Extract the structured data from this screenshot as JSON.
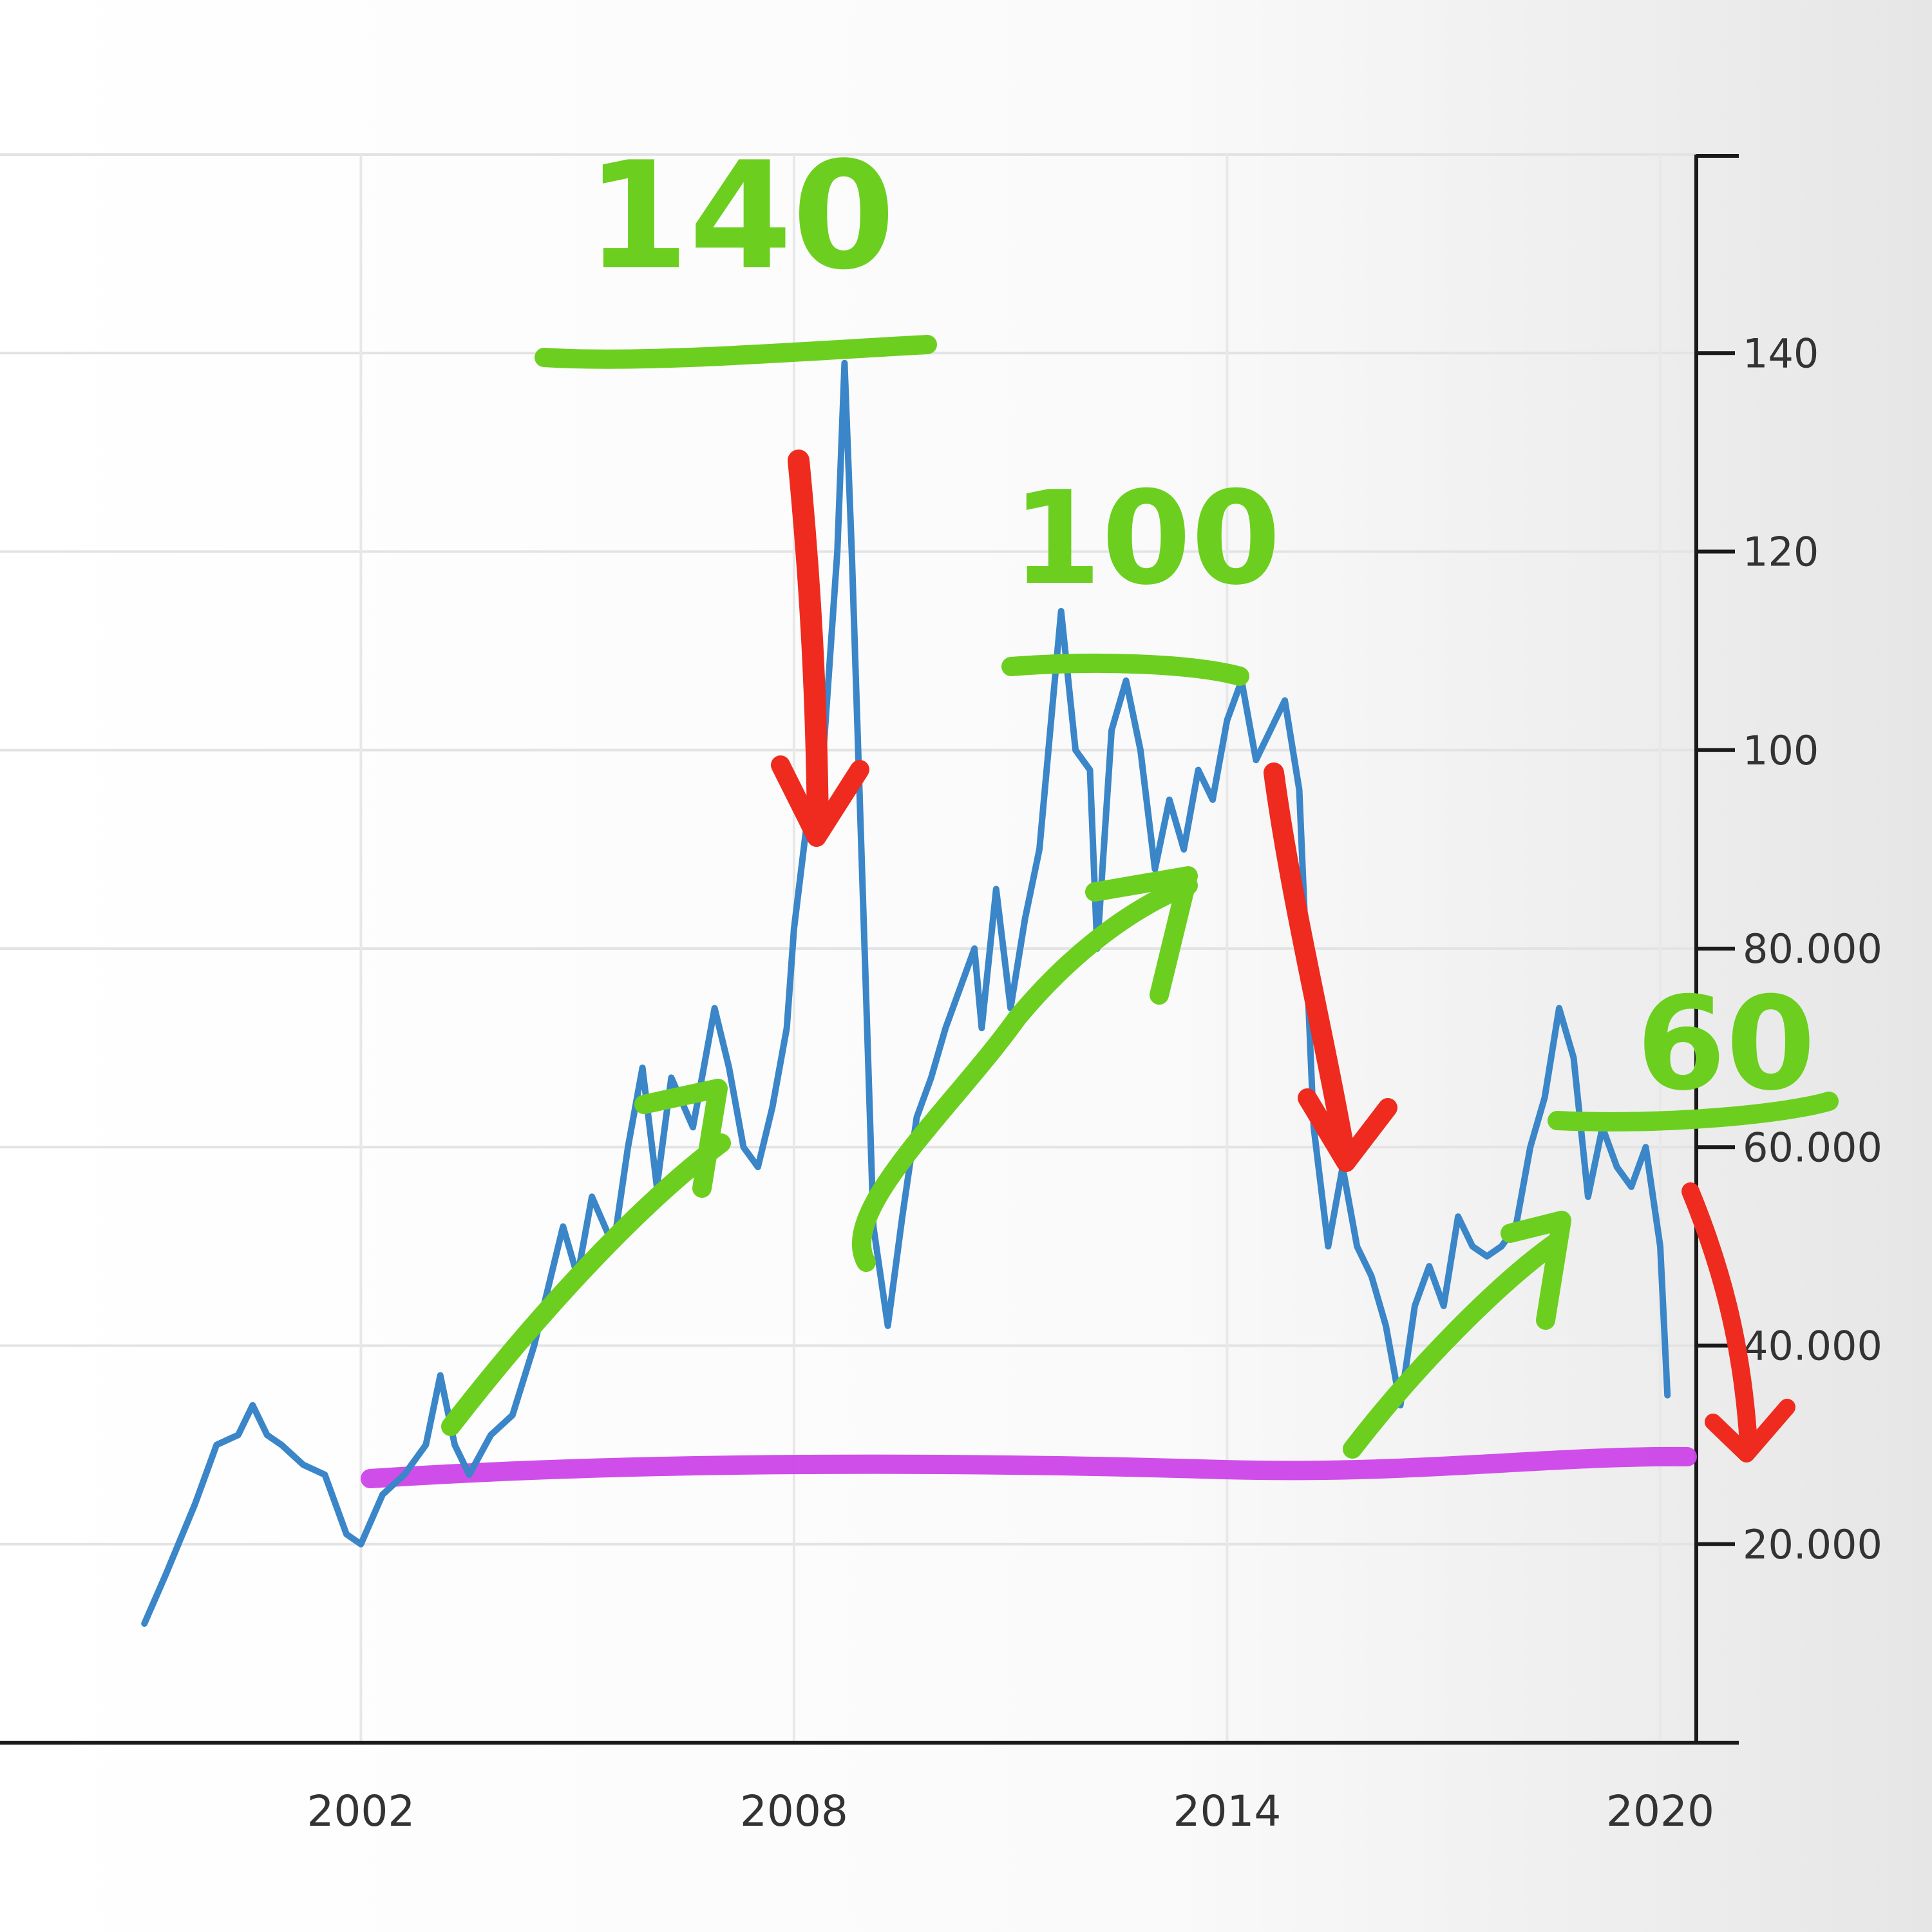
{
  "chart_data": {
    "type": "line",
    "title": "",
    "xlabel": "",
    "ylabel": "",
    "xlim": [
      1997.0,
      2020.5
    ],
    "ylim": [
      0,
      160
    ],
    "grid": true,
    "x_ticks": [
      {
        "value": 2002,
        "label": "2002"
      },
      {
        "value": 2008,
        "label": "2008"
      },
      {
        "value": 2014,
        "label": "2014"
      },
      {
        "value": 2020,
        "label": "2020"
      }
    ],
    "y_ticks": [
      {
        "value": 20,
        "label": "20.000"
      },
      {
        "value": 40,
        "label": "40.000"
      },
      {
        "value": 60,
        "label": "60.000"
      },
      {
        "value": 80,
        "label": "80.000"
      },
      {
        "value": 100,
        "label": "100"
      },
      {
        "value": 120,
        "label": "120"
      },
      {
        "value": 140,
        "label": "140"
      }
    ],
    "series": [
      {
        "color": "#3a86c8",
        "points": [
          [
            1999.0,
            12
          ],
          [
            1999.3,
            17
          ],
          [
            1999.7,
            24
          ],
          [
            2000.0,
            30
          ],
          [
            2000.3,
            31
          ],
          [
            2000.5,
            34
          ],
          [
            2000.7,
            31
          ],
          [
            2000.9,
            30
          ],
          [
            2001.2,
            28
          ],
          [
            2001.5,
            27
          ],
          [
            2001.8,
            21
          ],
          [
            2002.0,
            20
          ],
          [
            2002.3,
            25
          ],
          [
            2002.6,
            27
          ],
          [
            2002.9,
            30
          ],
          [
            2003.1,
            37
          ],
          [
            2003.3,
            30
          ],
          [
            2003.5,
            27
          ],
          [
            2003.8,
            31
          ],
          [
            2004.1,
            33
          ],
          [
            2004.4,
            40
          ],
          [
            2004.6,
            46
          ],
          [
            2004.8,
            52
          ],
          [
            2005.0,
            47
          ],
          [
            2005.2,
            55
          ],
          [
            2005.5,
            50
          ],
          [
            2005.7,
            60
          ],
          [
            2005.9,
            68
          ],
          [
            2006.1,
            56
          ],
          [
            2006.3,
            67
          ],
          [
            2006.6,
            62
          ],
          [
            2006.9,
            74
          ],
          [
            2007.1,
            68
          ],
          [
            2007.3,
            60
          ],
          [
            2007.5,
            58
          ],
          [
            2007.7,
            64
          ],
          [
            2007.9,
            72
          ],
          [
            2008.0,
            82
          ],
          [
            2008.2,
            94
          ],
          [
            2008.4,
            99
          ],
          [
            2008.6,
            120
          ],
          [
            2008.7,
            139
          ],
          [
            2008.8,
            120
          ],
          [
            2009.0,
            75
          ],
          [
            2009.1,
            52
          ],
          [
            2009.3,
            42
          ],
          [
            2009.5,
            53
          ],
          [
            2009.7,
            63
          ],
          [
            2009.9,
            67
          ],
          [
            2010.1,
            72
          ],
          [
            2010.3,
            76
          ],
          [
            2010.5,
            80
          ],
          [
            2010.6,
            72
          ],
          [
            2010.8,
            86
          ],
          [
            2011.0,
            74
          ],
          [
            2011.2,
            83
          ],
          [
            2011.4,
            90
          ],
          [
            2011.6,
            106
          ],
          [
            2011.7,
            114
          ],
          [
            2011.9,
            100
          ],
          [
            2012.1,
            98
          ],
          [
            2012.2,
            80
          ],
          [
            2012.4,
            102
          ],
          [
            2012.6,
            107
          ],
          [
            2012.8,
            100
          ],
          [
            2013.0,
            88
          ],
          [
            2013.2,
            95
          ],
          [
            2013.4,
            90
          ],
          [
            2013.6,
            98
          ],
          [
            2013.8,
            95
          ],
          [
            2014.0,
            103
          ],
          [
            2014.2,
            107
          ],
          [
            2014.4,
            99
          ],
          [
            2014.6,
            102
          ],
          [
            2014.8,
            105
          ],
          [
            2015.0,
            96
          ],
          [
            2015.2,
            62
          ],
          [
            2015.4,
            50
          ],
          [
            2015.6,
            58
          ],
          [
            2015.8,
            50
          ],
          [
            2016.0,
            47
          ],
          [
            2016.2,
            42
          ],
          [
            2016.4,
            34
          ],
          [
            2016.6,
            44
          ],
          [
            2016.8,
            48
          ],
          [
            2017.0,
            44
          ],
          [
            2017.2,
            53
          ],
          [
            2017.4,
            50
          ],
          [
            2017.6,
            49
          ],
          [
            2017.8,
            50
          ],
          [
            2018.0,
            52
          ],
          [
            2018.2,
            60
          ],
          [
            2018.4,
            65
          ],
          [
            2018.6,
            74
          ],
          [
            2018.8,
            69
          ],
          [
            2019.0,
            55
          ],
          [
            2019.2,
            62
          ],
          [
            2019.4,
            58
          ],
          [
            2019.6,
            56
          ],
          [
            2019.8,
            60
          ],
          [
            2020.0,
            50
          ],
          [
            2020.1,
            35
          ]
        ]
      }
    ],
    "annotations": [
      {
        "kind": "text",
        "text": "140",
        "color": "#6ccf1f"
      },
      {
        "kind": "text",
        "text": "100",
        "color": "#6ccf1f"
      },
      {
        "kind": "text",
        "text": "60",
        "color": "#6ccf1f"
      }
    ]
  }
}
